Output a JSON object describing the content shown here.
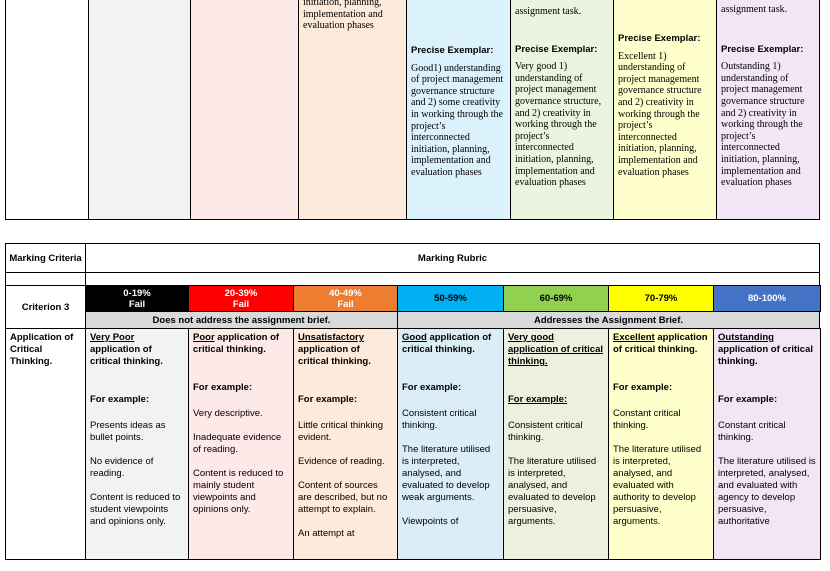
{
  "top_table": {
    "cells": [
      {
        "lead": "initiation, planning, implementation and evaluation phases"
      },
      {
        "heading": "Precise Exemplar:",
        "body": "Good1) understanding of project management governance structure and 2) some creativity in working through the project’s interconnected initiation, planning, implementation and evaluation phases"
      },
      {
        "lead": "assignment task.",
        "heading": "Precise Exemplar:",
        "body": "Very good 1) understanding of project management governance structure, and 2) creativity in working through the project’s interconnected initiation, planning, implementation and evaluation phases"
      },
      {
        "heading": "Precise Exemplar:",
        "body": "Excellent 1) understanding of project management governance structure and 2) creativity in working through the project’s interconnected initiation, planning, implementation and evaluation phases"
      },
      {
        "lead": "assignment task.",
        "heading": "Precise Exemplar:",
        "body": "Outstanding 1) understanding of project management governance structure and 2) creativity in working through the project’s interconnected initiation, planning, implementation and evaluation phases"
      }
    ]
  },
  "bottom_table": {
    "criteria_label": "Marking Criteria",
    "rubric_label": "Marking Rubric",
    "criterion": "Criterion 3",
    "bands": [
      {
        "range": "0-19%",
        "result": "Fail"
      },
      {
        "range": "20-39%",
        "result": "Fail"
      },
      {
        "range": "40-49%",
        "result": "Fail"
      },
      {
        "range": "50-59%"
      },
      {
        "range": "60-69%"
      },
      {
        "range": "70-79%"
      },
      {
        "range": "80-100%"
      }
    ],
    "groups": [
      "Does not address the assignment brief.",
      "Addresses the Assignment Brief."
    ],
    "criterion_name": "Application of Critical Thinking.",
    "descriptors": [
      {
        "level": "Very Poor",
        "rest": "application of critical thinking.",
        "example": "For example:",
        "items": [
          "Presents ideas as bullet points.",
          "No evidence of reading.",
          "Content is reduced to student viewpoints and opinions only."
        ]
      },
      {
        "level": "Poor",
        "rest": "application of critical thinking.",
        "example": "For example:",
        "items": [
          "Very descriptive.",
          "Inadequate evidence of reading.",
          "Content is reduced to mainly student viewpoints and opinions only."
        ]
      },
      {
        "level": "Unsatisfactory",
        "rest": "application of critical thinking.",
        "example": "For example:",
        "items": [
          "Little critical thinking evident.",
          "Evidence of reading.",
          "Content of sources are described, but no attempt to explain.",
          "An attempt at"
        ]
      },
      {
        "level": "Good",
        "rest": "application of critical thinking.",
        "example": "For example:",
        "items": [
          "Consistent critical thinking.",
          "The literature utilised is interpreted, analysed, and evaluated to develop weak arguments.",
          "Viewpoints of"
        ]
      },
      {
        "level": "Very good",
        "rest": "application of critical thinking.",
        "example": "For example:",
        "items": [
          "Consistent critical thinking.",
          "The literature utilised is interpreted, analysed, and evaluated to develop persuasive, arguments."
        ]
      },
      {
        "level": "Excellent",
        "rest": "application of critical thinking.",
        "example": "For example:",
        "items": [
          "Constant critical thinking.",
          "The literature utilised is interpreted, analysed, and evaluated with authority to develop persuasive, arguments."
        ]
      },
      {
        "level": "Outstanding",
        "rest": "application of critical thinking.",
        "example": "For example:",
        "items": [
          "Constant critical thinking.",
          "The literature utilised is interpreted, analysed, and evaluated with agency to develop persuasive, authoritative"
        ]
      }
    ]
  }
}
